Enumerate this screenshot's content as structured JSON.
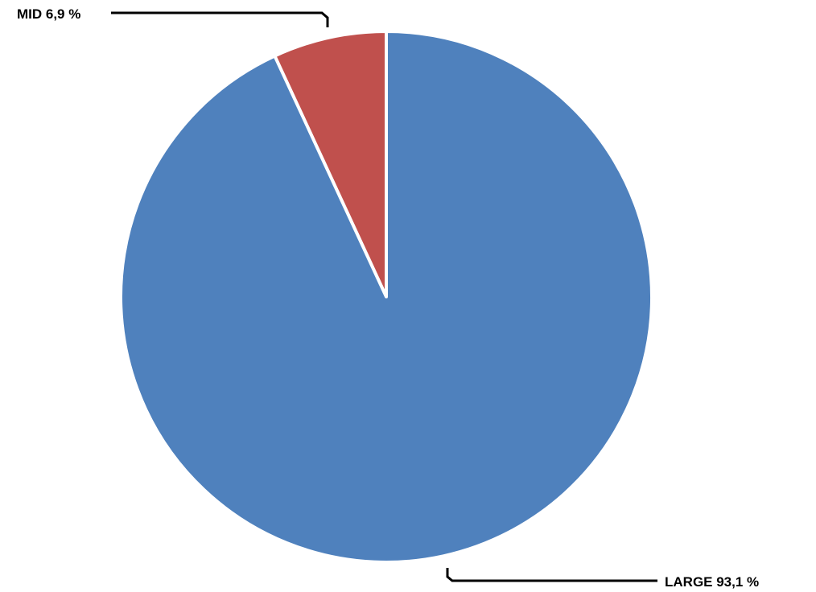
{
  "chart_data": {
    "type": "pie",
    "categories": [
      "MID",
      "LARGE"
    ],
    "values": [
      6.9,
      93.1
    ],
    "unit": "%",
    "labels": [
      "MID 6,9 %",
      "LARGE 93,1 %"
    ],
    "colors": [
      "#c0504d",
      "#4f81bd"
    ],
    "slice_border_color": "#ffffff",
    "start_angle_deg": 0,
    "direction": "counterclockwise",
    "legend": "none"
  }
}
